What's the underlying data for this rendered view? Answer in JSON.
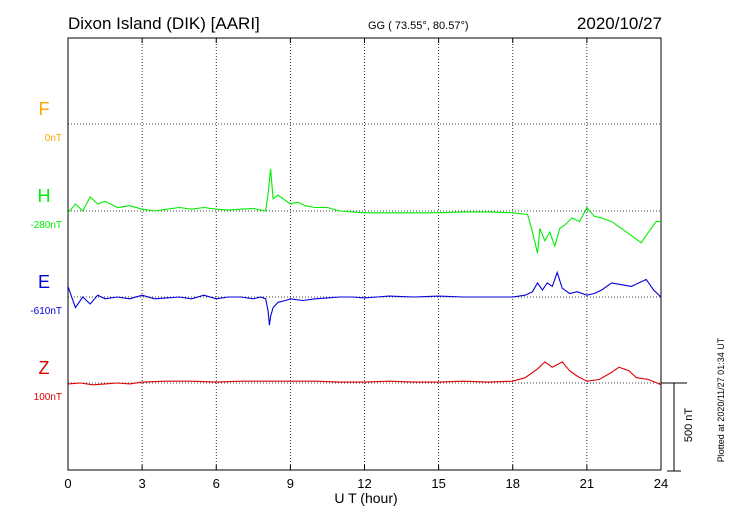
{
  "header": {
    "station": "Dixon Island (DIK)  [AARI]",
    "coords": "GG ( 73.55°,  80.57°)",
    "date": "2020/10/27"
  },
  "footer": {
    "plotted": "Plotted at 2020/11/27 01:34 UT"
  },
  "colors": {
    "F": "#ffa500",
    "H": "#00ee00",
    "E": "#0000dd",
    "Z": "#dd0000"
  },
  "chart_data": {
    "type": "line",
    "xlabel": "U T (hour)",
    "xlim": [
      0,
      24
    ],
    "xticks": [
      0,
      3,
      6,
      9,
      12,
      15,
      18,
      21,
      24
    ],
    "scale_bar_label": "500 nT",
    "scale_bar_nT": 500,
    "grid": true,
    "channels": [
      {
        "name": "F",
        "baseline_label": "0nT",
        "color": "#ffa500",
        "x": [],
        "values": []
      },
      {
        "name": "H",
        "baseline_label": "-280nT",
        "color": "#00ee00",
        "x": [
          0,
          0.3,
          0.6,
          0.9,
          1.2,
          1.5,
          2,
          2.5,
          3,
          3.5,
          4,
          4.5,
          5,
          5.5,
          6,
          6.5,
          7,
          7.5,
          7.8,
          8,
          8.1,
          8.2,
          8.3,
          8.5,
          8.8,
          9,
          9.3,
          9.6,
          10,
          10.5,
          11,
          11.5,
          12,
          13,
          14,
          15,
          16,
          17,
          18,
          18.6,
          18.8,
          19,
          19.1,
          19.3,
          19.5,
          19.7,
          19.9,
          20.1,
          20.4,
          20.7,
          21,
          21.3,
          21.6,
          22,
          22.4,
          22.8,
          23.2,
          23.5,
          23.8,
          24
        ],
        "values": [
          -10,
          40,
          0,
          80,
          40,
          55,
          20,
          30,
          10,
          0,
          10,
          20,
          10,
          20,
          10,
          5,
          10,
          15,
          5,
          0,
          100,
          240,
          70,
          90,
          60,
          40,
          50,
          30,
          20,
          20,
          0,
          -5,
          -10,
          -10,
          -10,
          -10,
          -5,
          -5,
          -10,
          -20,
          -120,
          -240,
          -100,
          -170,
          -120,
          -200,
          -100,
          -80,
          -40,
          -60,
          20,
          -30,
          -40,
          -60,
          -100,
          -140,
          -180,
          -120,
          -60,
          -60
        ]
      },
      {
        "name": "E",
        "baseline_label": "-610nT",
        "color": "#0000dd",
        "x": [
          0,
          0.3,
          0.6,
          0.9,
          1.2,
          1.5,
          2,
          2.5,
          3,
          3.5,
          4,
          4.5,
          5,
          5.5,
          6,
          6.5,
          7,
          7.5,
          7.8,
          8,
          8.1,
          8.15,
          8.2,
          8.3,
          8.5,
          8.8,
          9,
          9.5,
          10,
          10.5,
          11,
          11.5,
          12,
          13,
          14,
          15,
          16,
          17,
          18,
          18.5,
          18.8,
          19,
          19.2,
          19.4,
          19.6,
          19.8,
          20,
          20.3,
          20.6,
          21,
          21.3,
          21.6,
          22,
          22.4,
          22.8,
          23.1,
          23.4,
          23.7,
          24
        ],
        "values": [
          60,
          -60,
          0,
          -40,
          10,
          -10,
          0,
          -10,
          10,
          -10,
          -5,
          0,
          -10,
          10,
          -10,
          0,
          0,
          -10,
          0,
          -10,
          -80,
          -160,
          -110,
          -60,
          -30,
          -20,
          -10,
          -20,
          -10,
          -5,
          0,
          0,
          -5,
          5,
          0,
          5,
          0,
          0,
          0,
          10,
          30,
          80,
          40,
          80,
          60,
          140,
          50,
          20,
          30,
          10,
          20,
          40,
          80,
          70,
          60,
          80,
          100,
          40,
          0
        ]
      },
      {
        "name": "Z",
        "baseline_label": "100nT",
        "color": "#dd0000",
        "x": [
          0,
          0.5,
          1,
          1.5,
          2,
          2.5,
          3,
          4,
          5,
          6,
          7,
          8,
          9,
          10,
          11,
          12,
          13,
          14,
          15,
          16,
          17,
          18,
          18.5,
          19,
          19.3,
          19.6,
          20,
          20.3,
          20.6,
          21,
          21.5,
          22,
          22.3,
          22.7,
          23,
          23.5,
          24
        ],
        "values": [
          -5,
          0,
          -10,
          -5,
          0,
          -5,
          5,
          10,
          10,
          5,
          10,
          10,
          10,
          10,
          5,
          5,
          10,
          5,
          5,
          10,
          5,
          10,
          30,
          80,
          120,
          90,
          120,
          70,
          40,
          10,
          20,
          60,
          90,
          70,
          30,
          20,
          -10
        ]
      }
    ]
  }
}
